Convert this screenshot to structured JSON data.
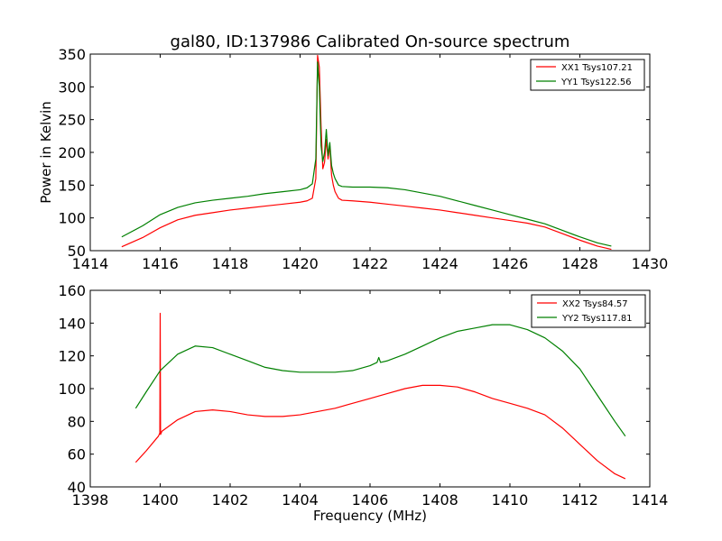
{
  "figure": {
    "title": "gal80, ID:137986 Calibrated On-source spectrum"
  },
  "chart_data": [
    {
      "type": "line",
      "title": "gal80, ID:137986 Calibrated On-source spectrum",
      "xlabel": "",
      "ylabel": "Power in Kelvin",
      "xlim": [
        1414,
        1430
      ],
      "ylim": [
        50,
        350
      ],
      "xticks": [
        "1414",
        "1416",
        "1418",
        "1420",
        "1422",
        "1424",
        "1426",
        "1428",
        "1430"
      ],
      "yticks": [
        "50",
        "100",
        "150",
        "200",
        "250",
        "300",
        "350"
      ],
      "grid": false,
      "legend_position": "top-right",
      "series": [
        {
          "name": "XX1 Tsys107.21",
          "color": "#ff0000",
          "x": [
            1414.9,
            1415.5,
            1416.0,
            1416.5,
            1417.0,
            1417.5,
            1418.0,
            1418.5,
            1419.0,
            1419.5,
            1420.0,
            1420.2,
            1420.35,
            1420.45,
            1420.5,
            1420.55,
            1420.6,
            1420.65,
            1420.7,
            1420.75,
            1420.8,
            1420.85,
            1420.9,
            1420.95,
            1421.0,
            1421.1,
            1421.2,
            1421.5,
            1422.0,
            1422.5,
            1423.0,
            1423.5,
            1424.0,
            1424.5,
            1425.0,
            1425.5,
            1426.0,
            1426.5,
            1427.0,
            1427.5,
            1428.0,
            1428.5,
            1428.9
          ],
          "values": [
            56,
            70,
            85,
            97,
            104,
            108,
            112,
            115,
            118,
            121,
            124,
            126,
            130,
            160,
            348,
            330,
            240,
            175,
            185,
            220,
            190,
            210,
            165,
            150,
            140,
            130,
            127,
            126,
            124,
            121,
            118,
            115,
            112,
            108,
            104,
            100,
            96,
            92,
            86,
            76,
            66,
            57,
            52
          ]
        },
        {
          "name": "YY1 Tsys122.56",
          "color": "#008000",
          "x": [
            1414.9,
            1415.5,
            1416.0,
            1416.5,
            1417.0,
            1417.5,
            1418.0,
            1418.5,
            1419.0,
            1419.5,
            1420.0,
            1420.2,
            1420.35,
            1420.45,
            1420.5,
            1420.55,
            1420.6,
            1420.65,
            1420.7,
            1420.75,
            1420.8,
            1420.85,
            1420.9,
            1420.95,
            1421.0,
            1421.1,
            1421.2,
            1421.5,
            1422.0,
            1422.5,
            1423.0,
            1423.5,
            1424.0,
            1424.5,
            1425.0,
            1425.5,
            1426.0,
            1426.5,
            1427.0,
            1427.5,
            1428.0,
            1428.5,
            1428.9
          ],
          "values": [
            71,
            88,
            105,
            116,
            123,
            127,
            130,
            133,
            137,
            140,
            143,
            146,
            152,
            190,
            338,
            300,
            210,
            186,
            200,
            235,
            195,
            215,
            180,
            168,
            160,
            150,
            148,
            147,
            147,
            146,
            143,
            138,
            133,
            126,
            119,
            112,
            105,
            98,
            91,
            81,
            71,
            62,
            57
          ]
        }
      ]
    },
    {
      "type": "line",
      "title": "",
      "xlabel": "Frequency (MHz)",
      "ylabel": "",
      "xlim": [
        1398,
        1414
      ],
      "ylim": [
        40,
        160
      ],
      "xticks": [
        "1398",
        "1400",
        "1402",
        "1404",
        "1406",
        "1408",
        "1410",
        "1412",
        "1414"
      ],
      "yticks": [
        "40",
        "60",
        "80",
        "100",
        "120",
        "140",
        "160"
      ],
      "grid": false,
      "legend_position": "top-right",
      "series": [
        {
          "name": "XX2 Tsys84.57",
          "color": "#ff0000",
          "x": [
            1399.3,
            1399.6,
            1399.95,
            1399.99,
            1400.0,
            1400.01,
            1400.05,
            1400.5,
            1401.0,
            1401.5,
            1402.0,
            1402.5,
            1403.0,
            1403.5,
            1404.0,
            1404.5,
            1405.0,
            1405.5,
            1406.0,
            1406.5,
            1407.0,
            1407.5,
            1408.0,
            1408.5,
            1409.0,
            1409.5,
            1410.0,
            1410.5,
            1411.0,
            1411.5,
            1412.0,
            1412.5,
            1413.0,
            1413.3
          ],
          "values": [
            55,
            62,
            71,
            73,
            146,
            72,
            74,
            81,
            86,
            87,
            86,
            84,
            83,
            83,
            84,
            86,
            88,
            91,
            94,
            97,
            100,
            102,
            102,
            101,
            98,
            94,
            91,
            88,
            84,
            76,
            66,
            56,
            48,
            45
          ]
        },
        {
          "name": "YY2 Tsys117.81",
          "color": "#008000",
          "x": [
            1399.3,
            1399.6,
            1400.0,
            1400.5,
            1401.0,
            1401.5,
            1402.0,
            1402.5,
            1403.0,
            1403.5,
            1404.0,
            1404.5,
            1405.0,
            1405.5,
            1406.0,
            1406.2,
            1406.25,
            1406.3,
            1406.5,
            1407.0,
            1407.5,
            1408.0,
            1408.5,
            1409.0,
            1409.5,
            1410.0,
            1410.5,
            1411.0,
            1411.5,
            1412.0,
            1412.5,
            1413.0,
            1413.3
          ],
          "values": [
            88,
            98,
            111,
            121,
            126,
            125,
            121,
            117,
            113,
            111,
            110,
            110,
            110,
            111,
            114,
            116,
            119,
            116,
            117,
            121,
            126,
            131,
            135,
            137,
            139,
            139,
            136,
            131,
            123,
            112,
            96,
            80,
            71
          ]
        }
      ]
    }
  ]
}
